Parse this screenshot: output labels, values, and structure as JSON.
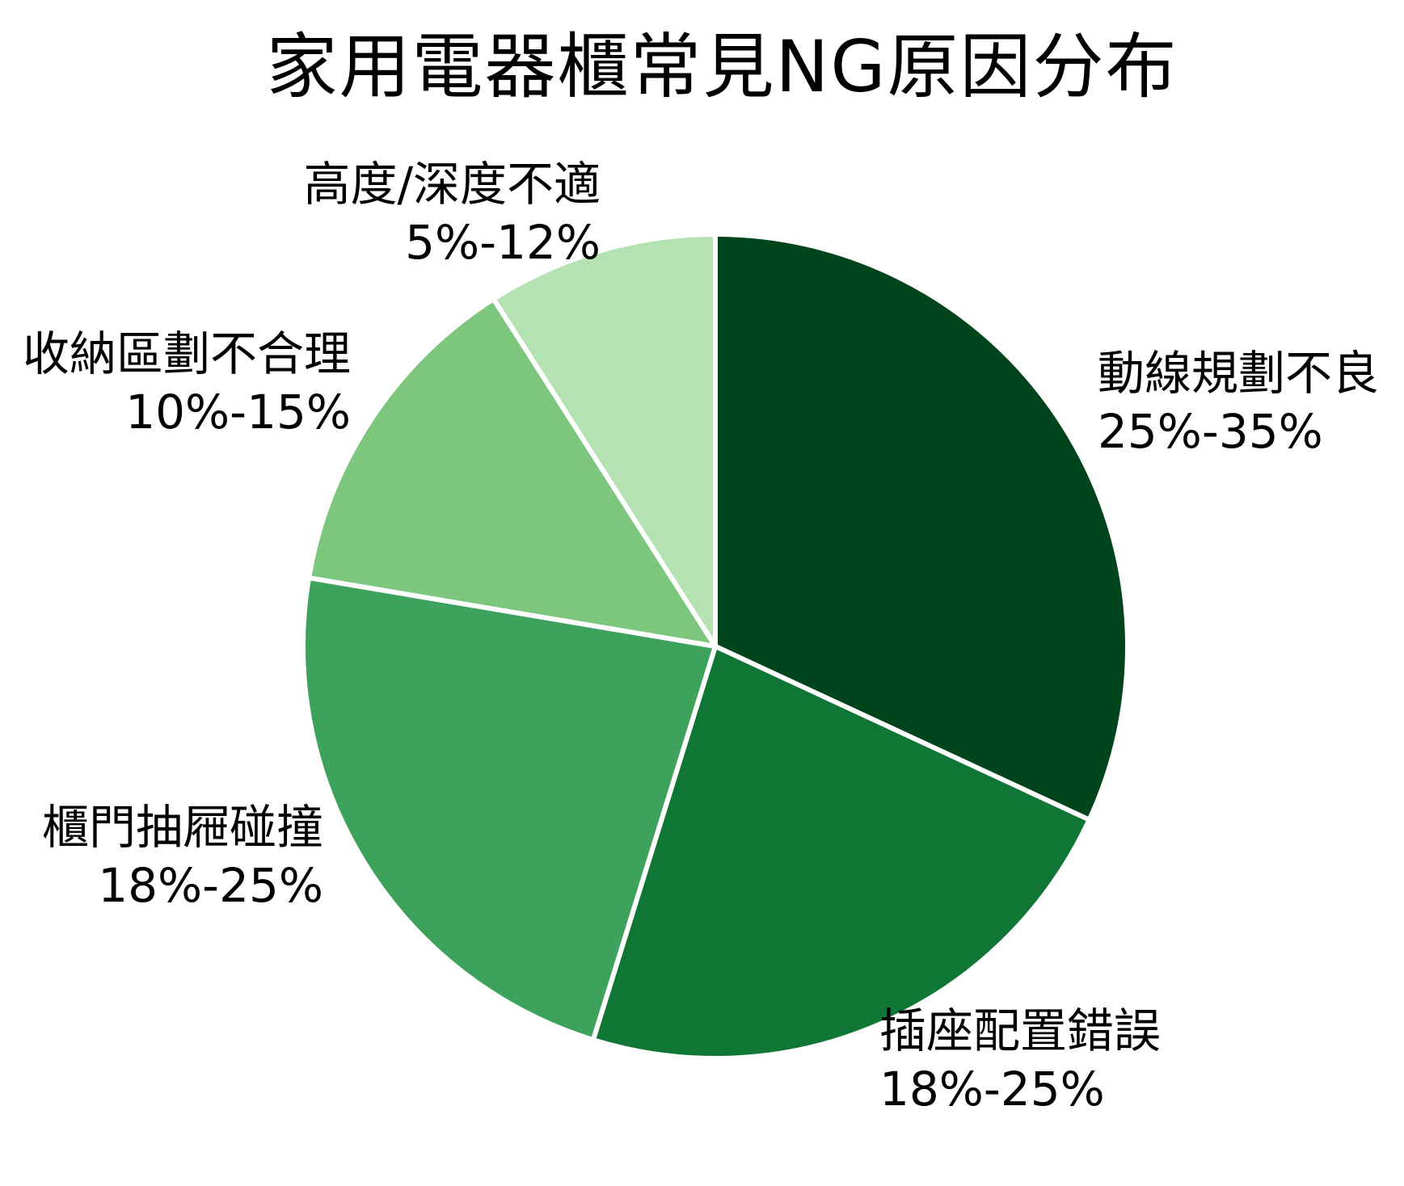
{
  "chart_data": {
    "type": "pie",
    "title": "家用電器櫃常見NG原因分布",
    "start_angle": "12-o'clock",
    "direction": "clockwise",
    "legend_position": "none",
    "label_style": "outside, two lines (name + percentage range)",
    "colors": {
      "edge": "#ffffff",
      "text": "#000000",
      "background": "#ffffff"
    },
    "slices": [
      {
        "label": "動線規劃不良",
        "range": "25%-35%",
        "range_min_pct": 25,
        "range_max_pct": 35,
        "value_mid_pct": 30,
        "color": "#00441b"
      },
      {
        "label": "插座配置錯誤",
        "range": "18%-25%",
        "range_min_pct": 18,
        "range_max_pct": 25,
        "value_mid_pct": 21.5,
        "color": "#107636"
      },
      {
        "label": "櫃門抽屜碰撞",
        "range": "18%-25%",
        "range_min_pct": 18,
        "range_max_pct": 25,
        "value_mid_pct": 21.5,
        "color": "#3da35c"
      },
      {
        "label": "收納區劃不合理",
        "range": "10%-15%",
        "range_min_pct": 10,
        "range_max_pct": 15,
        "value_mid_pct": 12.5,
        "color": "#7cc77d"
      },
      {
        "label": "高度/深度不適",
        "range": "5%-12%",
        "range_min_pct": 5,
        "range_max_pct": 12,
        "value_mid_pct": 8.5,
        "color": "#b5e2b2"
      }
    ]
  }
}
